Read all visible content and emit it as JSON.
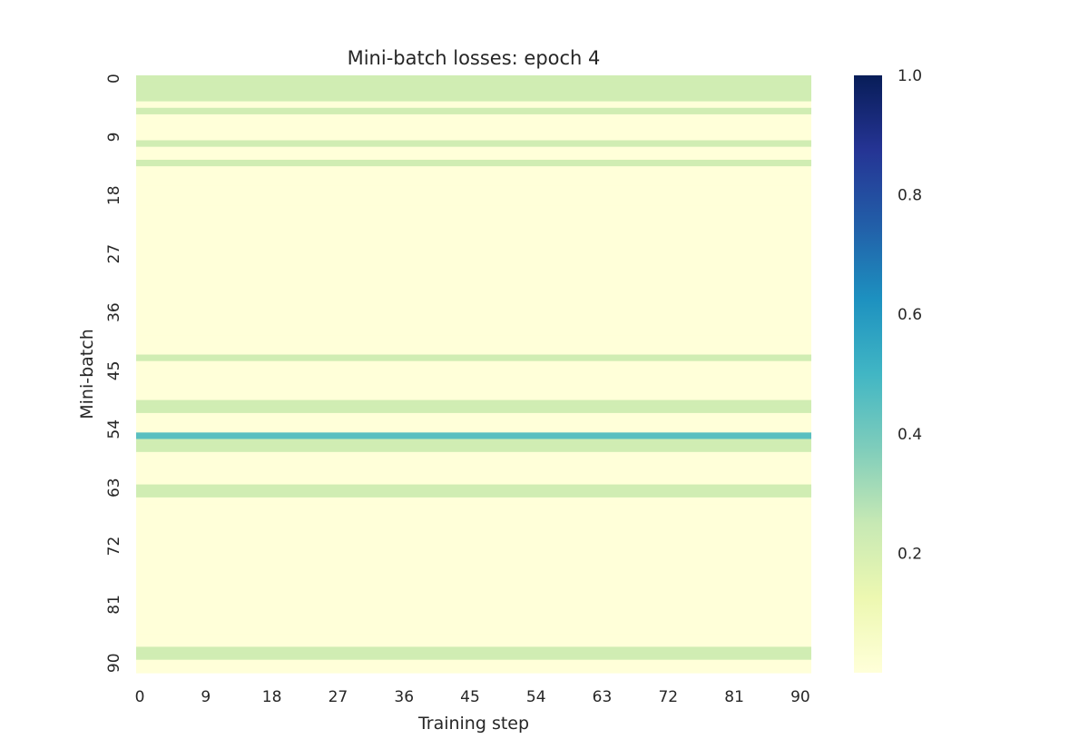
{
  "chart_data": {
    "type": "heatmap",
    "title": "Mini-batch losses: epoch 4",
    "xlabel": "Training step",
    "ylabel": "Mini-batch",
    "n_rows": 92,
    "n_cols": 92,
    "x_ticks": [
      "0",
      "9",
      "18",
      "27",
      "36",
      "45",
      "54",
      "63",
      "72",
      "81",
      "90"
    ],
    "y_ticks": [
      "0",
      "9",
      "18",
      "27",
      "36",
      "45",
      "54",
      "63",
      "72",
      "81",
      "90"
    ],
    "colormap": "YlGnBu",
    "vmin": 0.0,
    "vmax": 1.0,
    "colorbar_ticks": [
      "1.0",
      "0.8",
      "0.6",
      "0.4",
      "0.2"
    ],
    "colorbar_tick_values": [
      1.0,
      0.8,
      0.6,
      0.4,
      0.2
    ],
    "row_values": [
      0.22,
      0.22,
      0.22,
      0.22,
      0.0,
      0.22,
      0.0,
      0.0,
      0.0,
      0.0,
      0.22,
      0.0,
      0.0,
      0.22,
      0.0,
      0.0,
      0.0,
      0.0,
      0.0,
      0.0,
      0.0,
      0.0,
      0.0,
      0.0,
      0.0,
      0.0,
      0.0,
      0.0,
      0.0,
      0.0,
      0.0,
      0.0,
      0.0,
      0.0,
      0.0,
      0.0,
      0.0,
      0.0,
      0.0,
      0.0,
      0.0,
      0.0,
      0.0,
      0.22,
      0.0,
      0.0,
      0.0,
      0.0,
      0.0,
      0.0,
      0.22,
      0.22,
      0.0,
      0.0,
      0.0,
      0.45,
      0.22,
      0.22,
      0.0,
      0.0,
      0.0,
      0.0,
      0.0,
      0.22,
      0.22,
      0.0,
      0.0,
      0.0,
      0.0,
      0.0,
      0.0,
      0.0,
      0.0,
      0.0,
      0.0,
      0.0,
      0.0,
      0.0,
      0.0,
      0.0,
      0.0,
      0.0,
      0.0,
      0.0,
      0.0,
      0.0,
      0.0,
      0.0,
      0.22,
      0.22,
      0.0,
      0.0
    ]
  }
}
